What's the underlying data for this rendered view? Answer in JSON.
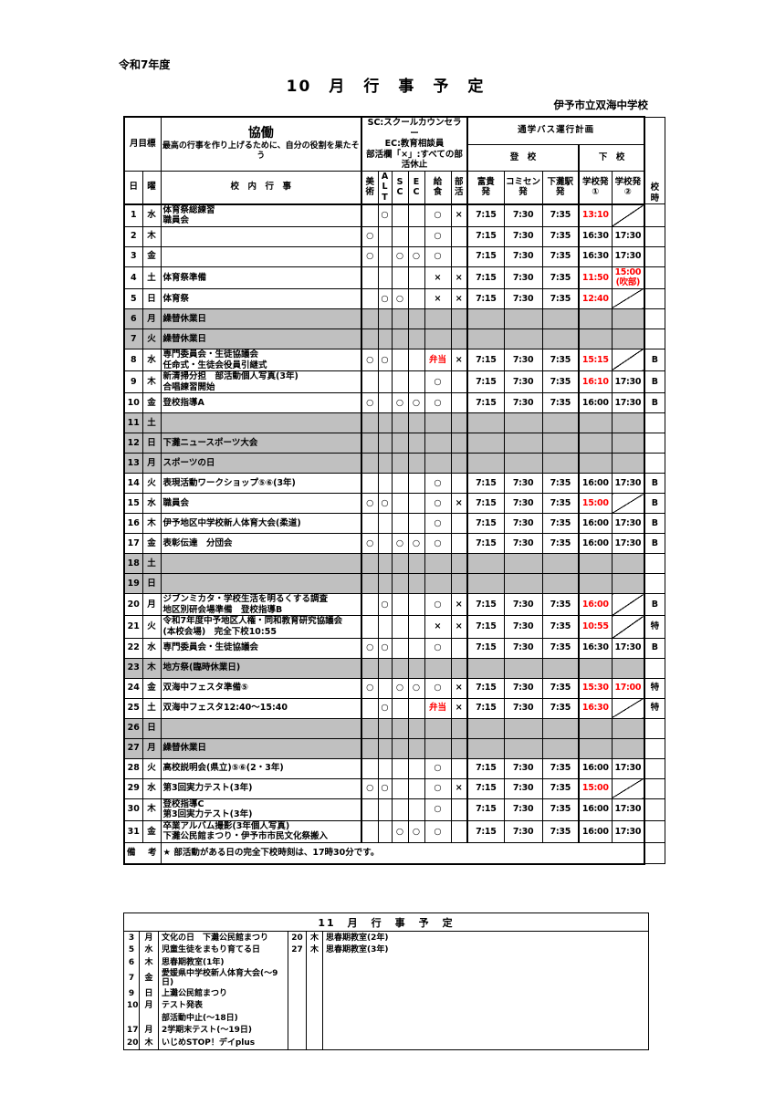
{
  "page": {
    "fiscal_year": "令和7年度",
    "title": "10　月　行　事　予　定",
    "school": "伊予市立双海中学校"
  },
  "legend": {
    "month_goal_label": "月目標",
    "goal_title": "協働",
    "goal_text": "最高の行事を作り上げるために、自分の役割を果たそう",
    "notes": "SC:スクールカウンセラー\nEC:教育相談員\n部活欄「×」:すべての部活休止"
  },
  "bus": {
    "title": "通学バス運行計画",
    "to_school": "登　校",
    "leave_school": "下　校"
  },
  "columns": {
    "day": "日",
    "weekday": "曜",
    "events": "校　内　行　事",
    "art": "美\n術",
    "alt": "A\nL\nT",
    "sc": "S\nC",
    "ec": "E\nC",
    "lunch": "給\n食",
    "club": "部\n活",
    "fuki": "富貴\n発",
    "comisen": "コミセン\n発",
    "station": "下灘駅\n発",
    "dep1": "学校発\n①",
    "dep2": "学校発\n②",
    "sched": "校\n時"
  },
  "colors": {
    "highlight_red": "#ff0000",
    "holiday_gray": "#c0c0c0"
  },
  "october": {
    "rows": [
      {
        "day": "1",
        "wd": "水",
        "events": "体育祭総練習\n職員会",
        "art": "",
        "alt": "○",
        "sc": "",
        "ec": "",
        "lunch": "○",
        "lunch_red": false,
        "club": "×",
        "fuki": "7:15",
        "comisen": "7:30",
        "station": "7:35",
        "dep1": "13:10",
        "dep1_red": true,
        "dep2": "",
        "dep2_red": false,
        "dep2_diag": true,
        "sched": "",
        "gray": false
      },
      {
        "day": "2",
        "wd": "木",
        "events": "",
        "art": "○",
        "alt": "",
        "sc": "",
        "ec": "",
        "lunch": "○",
        "lunch_red": false,
        "club": "",
        "fuki": "7:15",
        "comisen": "7:30",
        "station": "7:35",
        "dep1": "16:30",
        "dep1_red": false,
        "dep2": "17:30",
        "dep2_red": false,
        "dep2_diag": false,
        "sched": "",
        "gray": false
      },
      {
        "day": "3",
        "wd": "金",
        "events": "",
        "art": "○",
        "alt": "",
        "sc": "○",
        "ec": "○",
        "lunch": "○",
        "lunch_red": false,
        "club": "",
        "fuki": "7:15",
        "comisen": "7:30",
        "station": "7:35",
        "dep1": "16:30",
        "dep1_red": false,
        "dep2": "17:30",
        "dep2_red": false,
        "dep2_diag": false,
        "sched": "",
        "gray": false
      },
      {
        "day": "4",
        "wd": "土",
        "events": "体育祭準備",
        "art": "",
        "alt": "",
        "sc": "",
        "ec": "",
        "lunch": "×",
        "lunch_red": false,
        "club": "×",
        "fuki": "7:15",
        "comisen": "7:30",
        "station": "7:35",
        "dep1": "11:50",
        "dep1_red": true,
        "dep2": "15:00\n(吹部)",
        "dep2_red": true,
        "dep2_diag": false,
        "sched": "",
        "gray": false
      },
      {
        "day": "5",
        "wd": "日",
        "events": "体育祭",
        "art": "",
        "alt": "○",
        "sc": "○",
        "ec": "",
        "lunch": "×",
        "lunch_red": false,
        "club": "×",
        "fuki": "7:15",
        "comisen": "7:30",
        "station": "7:35",
        "dep1": "12:40",
        "dep1_red": true,
        "dep2": "",
        "dep2_red": false,
        "dep2_diag": true,
        "sched": "",
        "gray": false
      },
      {
        "day": "6",
        "wd": "月",
        "events": "繰替休業日",
        "art": "",
        "alt": "",
        "sc": "",
        "ec": "",
        "lunch": "",
        "lunch_red": false,
        "club": "",
        "fuki": "",
        "comisen": "",
        "station": "",
        "dep1": "",
        "dep1_red": false,
        "dep2": "",
        "dep2_red": false,
        "dep2_diag": false,
        "sched": "",
        "gray": true
      },
      {
        "day": "7",
        "wd": "火",
        "events": "繰替休業日",
        "art": "",
        "alt": "",
        "sc": "",
        "ec": "",
        "lunch": "",
        "lunch_red": false,
        "club": "",
        "fuki": "",
        "comisen": "",
        "station": "",
        "dep1": "",
        "dep1_red": false,
        "dep2": "",
        "dep2_red": false,
        "dep2_diag": false,
        "sched": "",
        "gray": true
      },
      {
        "day": "8",
        "wd": "水",
        "events": "専門委員会・生徒協議会\n任命式・生徒会役員引継式",
        "art": "○",
        "alt": "○",
        "sc": "",
        "ec": "",
        "lunch": "弁当",
        "lunch_red": true,
        "club": "×",
        "fuki": "7:15",
        "comisen": "7:30",
        "station": "7:35",
        "dep1": "15:15",
        "dep1_red": true,
        "dep2": "",
        "dep2_red": false,
        "dep2_diag": true,
        "sched": "B",
        "gray": false
      },
      {
        "day": "9",
        "wd": "木",
        "events": "新清掃分担　部活動個人写真(3年)\n合唱練習開始",
        "art": "",
        "alt": "",
        "sc": "",
        "ec": "",
        "lunch": "○",
        "lunch_red": false,
        "club": "",
        "fuki": "7:15",
        "comisen": "7:30",
        "station": "7:35",
        "dep1": "16:10",
        "dep1_red": true,
        "dep2": "17:30",
        "dep2_red": false,
        "dep2_diag": false,
        "sched": "B",
        "gray": false
      },
      {
        "day": "10",
        "wd": "金",
        "events": "登校指導A",
        "art": "○",
        "alt": "",
        "sc": "○",
        "ec": "○",
        "lunch": "○",
        "lunch_red": false,
        "club": "",
        "fuki": "7:15",
        "comisen": "7:30",
        "station": "7:35",
        "dep1": "16:00",
        "dep1_red": false,
        "dep2": "17:30",
        "dep2_red": false,
        "dep2_diag": false,
        "sched": "B",
        "gray": false
      },
      {
        "day": "11",
        "wd": "土",
        "events": "",
        "art": "",
        "alt": "",
        "sc": "",
        "ec": "",
        "lunch": "",
        "lunch_red": false,
        "club": "",
        "fuki": "",
        "comisen": "",
        "station": "",
        "dep1": "",
        "dep1_red": false,
        "dep2": "",
        "dep2_red": false,
        "dep2_diag": false,
        "sched": "",
        "gray": true
      },
      {
        "day": "12",
        "wd": "日",
        "events": "下灘ニュースポーツ大会",
        "art": "",
        "alt": "",
        "sc": "",
        "ec": "",
        "lunch": "",
        "lunch_red": false,
        "club": "",
        "fuki": "",
        "comisen": "",
        "station": "",
        "dep1": "",
        "dep1_red": false,
        "dep2": "",
        "dep2_red": false,
        "dep2_diag": false,
        "sched": "",
        "gray": true
      },
      {
        "day": "13",
        "wd": "月",
        "events": "スポーツの日",
        "art": "",
        "alt": "",
        "sc": "",
        "ec": "",
        "lunch": "",
        "lunch_red": false,
        "club": "",
        "fuki": "",
        "comisen": "",
        "station": "",
        "dep1": "",
        "dep1_red": false,
        "dep2": "",
        "dep2_red": false,
        "dep2_diag": false,
        "sched": "",
        "gray": true
      },
      {
        "day": "14",
        "wd": "火",
        "events": "表現活動ワークショップ⑤⑥(3年)",
        "art": "",
        "alt": "",
        "sc": "",
        "ec": "",
        "lunch": "○",
        "lunch_red": false,
        "club": "",
        "fuki": "7:15",
        "comisen": "7:30",
        "station": "7:35",
        "dep1": "16:00",
        "dep1_red": false,
        "dep2": "17:30",
        "dep2_red": false,
        "dep2_diag": false,
        "sched": "B",
        "gray": false
      },
      {
        "day": "15",
        "wd": "水",
        "events": "職員会",
        "art": "○",
        "alt": "○",
        "sc": "",
        "ec": "",
        "lunch": "○",
        "lunch_red": false,
        "club": "×",
        "fuki": "7:15",
        "comisen": "7:30",
        "station": "7:35",
        "dep1": "15:00",
        "dep1_red": true,
        "dep2": "",
        "dep2_red": false,
        "dep2_diag": true,
        "sched": "B",
        "gray": false
      },
      {
        "day": "16",
        "wd": "木",
        "events": "伊予地区中学校新人体育大会(柔道)",
        "art": "",
        "alt": "",
        "sc": "",
        "ec": "",
        "lunch": "○",
        "lunch_red": false,
        "club": "",
        "fuki": "7:15",
        "comisen": "7:30",
        "station": "7:35",
        "dep1": "16:00",
        "dep1_red": false,
        "dep2": "17:30",
        "dep2_red": false,
        "dep2_diag": false,
        "sched": "B",
        "gray": false
      },
      {
        "day": "17",
        "wd": "金",
        "events": "表彰伝達　分団会",
        "art": "○",
        "alt": "",
        "sc": "○",
        "ec": "○",
        "lunch": "○",
        "lunch_red": false,
        "club": "",
        "fuki": "7:15",
        "comisen": "7:30",
        "station": "7:35",
        "dep1": "16:00",
        "dep1_red": false,
        "dep2": "17:30",
        "dep2_red": false,
        "dep2_diag": false,
        "sched": "B",
        "gray": false
      },
      {
        "day": "18",
        "wd": "土",
        "events": "",
        "art": "",
        "alt": "",
        "sc": "",
        "ec": "",
        "lunch": "",
        "lunch_red": false,
        "club": "",
        "fuki": "",
        "comisen": "",
        "station": "",
        "dep1": "",
        "dep1_red": false,
        "dep2": "",
        "dep2_red": false,
        "dep2_diag": false,
        "sched": "",
        "gray": true
      },
      {
        "day": "19",
        "wd": "日",
        "events": "",
        "art": "",
        "alt": "",
        "sc": "",
        "ec": "",
        "lunch": "",
        "lunch_red": false,
        "club": "",
        "fuki": "",
        "comisen": "",
        "station": "",
        "dep1": "",
        "dep1_red": false,
        "dep2": "",
        "dep2_red": false,
        "dep2_diag": false,
        "sched": "",
        "gray": true
      },
      {
        "day": "20",
        "wd": "月",
        "events": "ジブンミカタ・学校生活を明るくする調査\n地区別研会場準備　登校指導B",
        "art": "",
        "alt": "○",
        "sc": "",
        "ec": "",
        "lunch": "○",
        "lunch_red": false,
        "club": "×",
        "fuki": "7:15",
        "comisen": "7:30",
        "station": "7:35",
        "dep1": "16:00",
        "dep1_red": true,
        "dep2": "",
        "dep2_red": false,
        "dep2_diag": true,
        "sched": "B",
        "gray": false
      },
      {
        "day": "21",
        "wd": "火",
        "events": "令和7年度中予地区人権・同和教育研究協議会\n(本校会場)　完全下校10:55",
        "art": "",
        "alt": "",
        "sc": "",
        "ec": "",
        "lunch": "×",
        "lunch_red": false,
        "club": "×",
        "fuki": "7:15",
        "comisen": "7:30",
        "station": "7:35",
        "dep1": "10:55",
        "dep1_red": true,
        "dep2": "",
        "dep2_red": false,
        "dep2_diag": true,
        "sched": "特",
        "gray": false
      },
      {
        "day": "22",
        "wd": "水",
        "events": "専門委員会・生徒協議会",
        "art": "○",
        "alt": "○",
        "sc": "",
        "ec": "",
        "lunch": "○",
        "lunch_red": false,
        "club": "",
        "fuki": "7:15",
        "comisen": "7:30",
        "station": "7:35",
        "dep1": "16:30",
        "dep1_red": false,
        "dep2": "17:30",
        "dep2_red": false,
        "dep2_diag": false,
        "sched": "B",
        "gray": false
      },
      {
        "day": "23",
        "wd": "木",
        "events": "地方祭(臨時休業日)",
        "art": "",
        "alt": "",
        "sc": "",
        "ec": "",
        "lunch": "",
        "lunch_red": false,
        "club": "",
        "fuki": "",
        "comisen": "",
        "station": "",
        "dep1": "",
        "dep1_red": false,
        "dep2": "",
        "dep2_red": false,
        "dep2_diag": false,
        "sched": "",
        "gray": true
      },
      {
        "day": "24",
        "wd": "金",
        "events": "双海中フェスタ準備⑤",
        "art": "○",
        "alt": "",
        "sc": "○",
        "ec": "○",
        "lunch": "○",
        "lunch_red": false,
        "club": "×",
        "fuki": "7:15",
        "comisen": "7:30",
        "station": "7:35",
        "dep1": "15:30",
        "dep1_red": true,
        "dep2": "17:00",
        "dep2_red": true,
        "dep2_diag": false,
        "sched": "特",
        "gray": false
      },
      {
        "day": "25",
        "wd": "土",
        "events": "双海中フェスタ12:40～15:40",
        "art": "",
        "alt": "○",
        "sc": "",
        "ec": "",
        "lunch": "弁当",
        "lunch_red": true,
        "club": "×",
        "fuki": "7:15",
        "comisen": "7:30",
        "station": "7:35",
        "dep1": "16:30",
        "dep1_red": true,
        "dep2": "",
        "dep2_red": false,
        "dep2_diag": true,
        "sched": "特",
        "gray": false
      },
      {
        "day": "26",
        "wd": "日",
        "events": "",
        "art": "",
        "alt": "",
        "sc": "",
        "ec": "",
        "lunch": "",
        "lunch_red": false,
        "club": "",
        "fuki": "",
        "comisen": "",
        "station": "",
        "dep1": "",
        "dep1_red": false,
        "dep2": "",
        "dep2_red": false,
        "dep2_diag": false,
        "sched": "",
        "gray": true
      },
      {
        "day": "27",
        "wd": "月",
        "events": "繰替休業日",
        "art": "",
        "alt": "",
        "sc": "",
        "ec": "",
        "lunch": "",
        "lunch_red": false,
        "club": "",
        "fuki": "",
        "comisen": "",
        "station": "",
        "dep1": "",
        "dep1_red": false,
        "dep2": "",
        "dep2_red": false,
        "dep2_diag": false,
        "sched": "",
        "gray": true
      },
      {
        "day": "28",
        "wd": "火",
        "events": "高校説明会(県立)⑤⑥(2・3年)",
        "art": "",
        "alt": "",
        "sc": "",
        "ec": "",
        "lunch": "○",
        "lunch_red": false,
        "club": "",
        "fuki": "7:15",
        "comisen": "7:30",
        "station": "7:35",
        "dep1": "16:00",
        "dep1_red": false,
        "dep2": "17:30",
        "dep2_red": false,
        "dep2_diag": false,
        "sched": "",
        "gray": false
      },
      {
        "day": "29",
        "wd": "水",
        "events": "第3回実力テスト(3年)",
        "art": "○",
        "alt": "○",
        "sc": "",
        "ec": "",
        "lunch": "○",
        "lunch_red": false,
        "club": "×",
        "fuki": "7:15",
        "comisen": "7:30",
        "station": "7:35",
        "dep1": "15:00",
        "dep1_red": true,
        "dep2": "",
        "dep2_red": false,
        "dep2_diag": true,
        "sched": "",
        "gray": false
      },
      {
        "day": "30",
        "wd": "木",
        "events": "登校指導C\n第3回実力テスト(3年)",
        "art": "",
        "alt": "",
        "sc": "",
        "ec": "",
        "lunch": "○",
        "lunch_red": false,
        "club": "",
        "fuki": "7:15",
        "comisen": "7:30",
        "station": "7:35",
        "dep1": "16:00",
        "dep1_red": false,
        "dep2": "17:30",
        "dep2_red": false,
        "dep2_diag": false,
        "sched": "",
        "gray": false
      },
      {
        "day": "31",
        "wd": "金",
        "events": "卒業アルバム撮影(3年個人写真)\n下灘公民館まつり・伊予市市民文化祭搬入",
        "art": "",
        "alt": "",
        "sc": "○",
        "ec": "○",
        "lunch": "○",
        "lunch_red": false,
        "club": "",
        "fuki": "7:15",
        "comisen": "7:30",
        "station": "7:35",
        "dep1": "16:00",
        "dep1_red": false,
        "dep2": "17:30",
        "dep2_red": false,
        "dep2_diag": false,
        "sched": "",
        "gray": false
      }
    ]
  },
  "remarks": {
    "label": "備　考",
    "text": "★ 部活動がある日の完全下校時刻は、17時30分です。"
  },
  "november": {
    "title": "11　月　行　事　予　定",
    "left": [
      {
        "day": "3",
        "wd": "月",
        "event": "文化の日　下灘公民館まつり"
      },
      {
        "day": "5",
        "wd": "水",
        "event": "児童生徒をまもり育てる日"
      },
      {
        "day": "6",
        "wd": "木",
        "event": "思春期教室(1年)"
      },
      {
        "day": "7",
        "wd": "金",
        "event": "愛媛県中学校新人体育大会(～9日)"
      },
      {
        "day": "9",
        "wd": "日",
        "event": "上灘公民館まつり"
      },
      {
        "day": "10",
        "wd": "月",
        "event": "テスト発表"
      },
      {
        "day": "",
        "wd": "",
        "event": "部活動中止(～18日)"
      },
      {
        "day": "17",
        "wd": "月",
        "event": "2学期末テスト(～19日)"
      },
      {
        "day": "20",
        "wd": "木",
        "event": "いじめSTOP！デイplus"
      }
    ],
    "right": [
      {
        "day": "20",
        "wd": "木",
        "event": "思春期教室(2年)"
      },
      {
        "day": "27",
        "wd": "木",
        "event": "思春期教室(3年)"
      }
    ]
  }
}
